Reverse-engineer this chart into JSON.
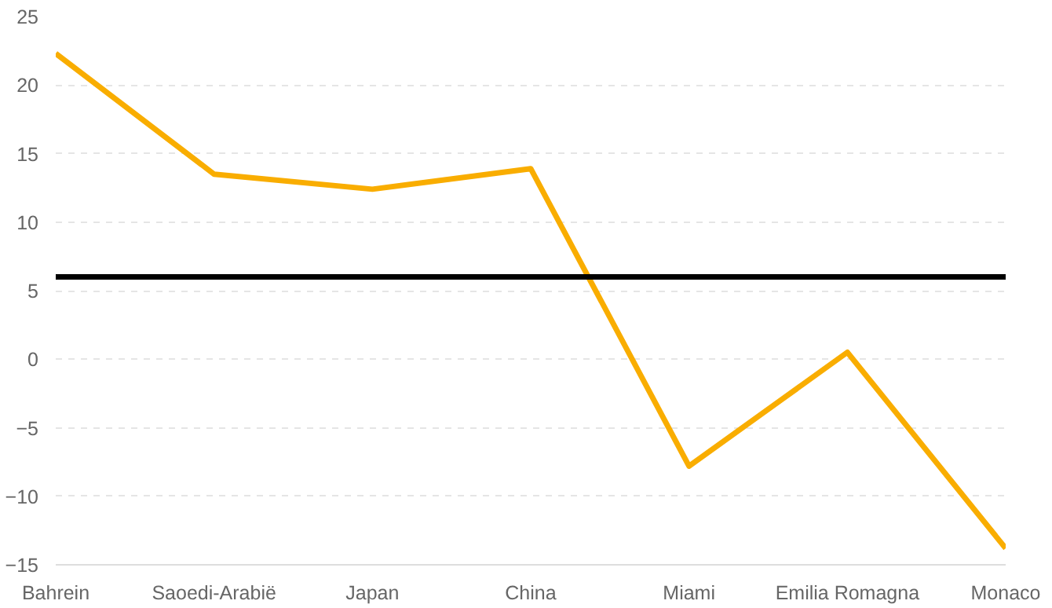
{
  "chart_data": {
    "type": "line",
    "categories": [
      "Bahrein",
      "Saoedi-Arabië",
      "Japan",
      "China",
      "Miami",
      "Emilia Romagna",
      "Monaco"
    ],
    "series": [
      {
        "color": "#f9ad00",
        "values": [
          22.3,
          13.5,
          12.4,
          13.9,
          -7.8,
          0.5,
          -13.8
        ]
      }
    ],
    "ylim": [
      -15,
      25
    ],
    "yticks": [
      -15,
      -10,
      -5,
      0,
      5,
      10,
      15,
      20,
      25
    ],
    "ref_lines": [
      {
        "axis": "y",
        "value": 6,
        "color": "#000000"
      }
    ],
    "grid": "y",
    "marker": "none",
    "line_style": "solid"
  }
}
